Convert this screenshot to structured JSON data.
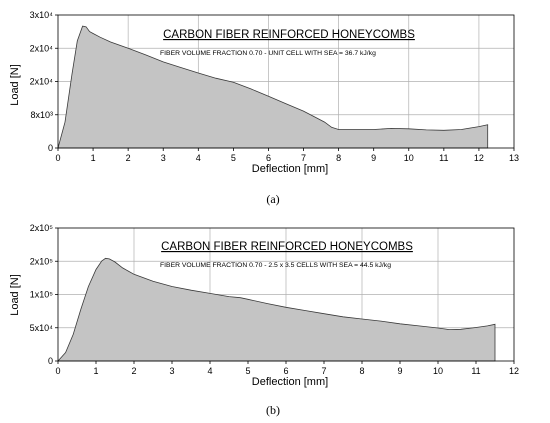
{
  "figure": {
    "captions": [
      "(a)",
      "(b)"
    ]
  },
  "chart_data": [
    {
      "type": "area",
      "title": "CARBON FIBER REINFORCED HONEYCOMBS",
      "subtitle": "FIBER VOLUME FRACTION 0.70 - UNIT CELL WITH SEA = 36.7 kJ/kg",
      "xlabel": "Deflection [mm]",
      "ylabel": "Load [N]",
      "xlim": [
        0,
        13
      ],
      "ylim": [
        0,
        36000
      ],
      "x_ticks": [
        0,
        1,
        2,
        3,
        4,
        5,
        6,
        7,
        8,
        9,
        10,
        11,
        12,
        13
      ],
      "y_ticks": [
        {
          "value": 0,
          "label": "0"
        },
        {
          "value": 9000,
          "label": "8x10³"
        },
        {
          "value": 18000,
          "label": "2x10⁴"
        },
        {
          "value": 27000,
          "label": "2x10⁴"
        },
        {
          "value": 36000,
          "label": "3x10⁴"
        }
      ],
      "grid": true,
      "x": [
        0,
        0.2,
        0.4,
        0.55,
        0.7,
        0.8,
        0.9,
        1.0,
        1.2,
        1.5,
        2.0,
        2.5,
        3.0,
        3.5,
        4.0,
        4.5,
        5.0,
        5.5,
        6.0,
        6.5,
        7.0,
        7.3,
        7.6,
        7.8,
        8.0,
        8.5,
        9.0,
        9.5,
        10.0,
        10.5,
        11.0,
        11.5,
        12.0,
        12.25
      ],
      "y": [
        0,
        7000,
        20000,
        29000,
        33000,
        32800,
        31500,
        31000,
        30000,
        28700,
        27000,
        25200,
        23300,
        21800,
        20300,
        18900,
        17800,
        16000,
        14000,
        12000,
        10000,
        8500,
        7000,
        5600,
        5000,
        5000,
        5000,
        5300,
        5200,
        4900,
        4800,
        5000,
        5800,
        6300
      ]
    },
    {
      "type": "area",
      "title": "CARBON FIBER REINFORCED HONEYCOMBS",
      "subtitle": "FIBER VOLUME FRACTION 0.70 - 2.5 x 3.5 CELLS WITH SEA = 44.5 kJ/kg",
      "xlabel": "Deflection [mm]",
      "ylabel": "Load [N]",
      "xlim": [
        0,
        12
      ],
      "ylim": [
        0,
        250000
      ],
      "x_ticks": [
        0,
        1,
        2,
        3,
        4,
        5,
        6,
        7,
        8,
        9,
        10,
        11,
        12
      ],
      "y_ticks": [
        {
          "value": 0,
          "label": "0"
        },
        {
          "value": 62500,
          "label": "5x10⁴"
        },
        {
          "value": 125000,
          "label": "1x10⁵"
        },
        {
          "value": 187500,
          "label": "2x10⁵"
        },
        {
          "value": 250000,
          "label": "2x10⁵"
        }
      ],
      "grid": true,
      "x": [
        0,
        0.2,
        0.4,
        0.6,
        0.8,
        1.0,
        1.15,
        1.25,
        1.35,
        1.5,
        1.7,
        2.0,
        2.5,
        3.0,
        3.5,
        4.0,
        4.5,
        4.8,
        5.0,
        5.5,
        6.0,
        6.5,
        7.0,
        7.5,
        8.0,
        8.5,
        9.0,
        9.5,
        10.0,
        10.3,
        10.6,
        11.0,
        11.3,
        11.5
      ],
      "y": [
        0,
        16000,
        50000,
        97000,
        140000,
        172000,
        188000,
        193000,
        192000,
        186000,
        175000,
        163000,
        150000,
        140000,
        133000,
        127000,
        121000,
        119000,
        116000,
        108000,
        101000,
        95000,
        89000,
        83000,
        79000,
        75000,
        70000,
        66000,
        62000,
        59000,
        59500,
        63000,
        66000,
        69000
      ]
    }
  ]
}
